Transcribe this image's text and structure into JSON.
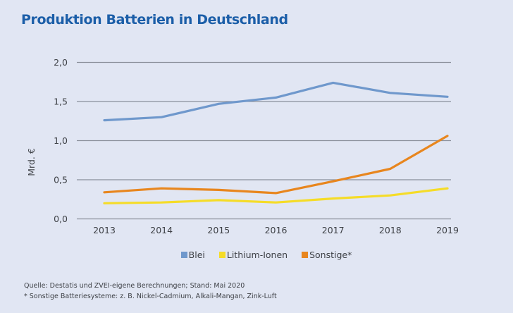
{
  "title": "Produktion Batterien in Deutschland",
  "chart_data": {
    "type": "line",
    "title": "Produktion Batterien in Deutschland",
    "xlabel": "",
    "ylabel": "Mrd. €",
    "categories": [
      "2013",
      "2014",
      "2015",
      "2016",
      "2017",
      "2018",
      "2019"
    ],
    "ylim": [
      0,
      2.0
    ],
    "yticks": [
      0.0,
      0.5,
      1.0,
      1.5,
      2.0
    ],
    "ytick_labels": [
      "0,0",
      "0,5",
      "1,0",
      "1,5",
      "2,0"
    ],
    "grid": "horizontal",
    "legend_position": "bottom",
    "series": [
      {
        "name": "Blei",
        "color": "#6f98cc",
        "values": [
          1.26,
          1.3,
          1.47,
          1.55,
          1.74,
          1.61,
          1.56
        ]
      },
      {
        "name": "Lithium-Ionen",
        "color": "#f5dc28",
        "values": [
          0.2,
          0.21,
          0.24,
          0.21,
          0.26,
          0.3,
          0.39
        ]
      },
      {
        "name": "Sonstige*",
        "color": "#e8861e",
        "values": [
          0.34,
          0.39,
          0.37,
          0.33,
          0.48,
          0.64,
          1.06
        ]
      }
    ]
  },
  "notes": {
    "source": "Quelle: Destatis und ZVEI-eigene Berechnungen; Stand: Mai 2020",
    "footnote": "* Sonstige Batteriesysteme: z. B. Nickel-Cadmium, Alkali-Mangan, Zink-Luft"
  }
}
